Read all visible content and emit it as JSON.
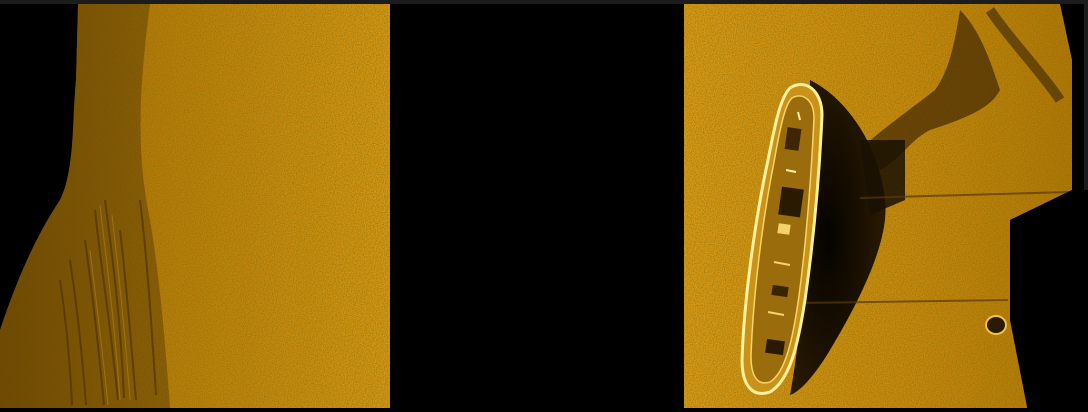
{
  "scene": {
    "description_free": true,
    "panels": [
      {
        "id": "left",
        "subject": "seafloor-sediment"
      },
      {
        "id": "right",
        "subject": "shipwreck-with-shadow"
      }
    ],
    "colors": {
      "background": "#000000",
      "sonar_base": "#c98a0c",
      "sonar_light": "#e3a526",
      "sonar_dark": "#7a4e06",
      "highlight": "#fff1a0"
    }
  }
}
